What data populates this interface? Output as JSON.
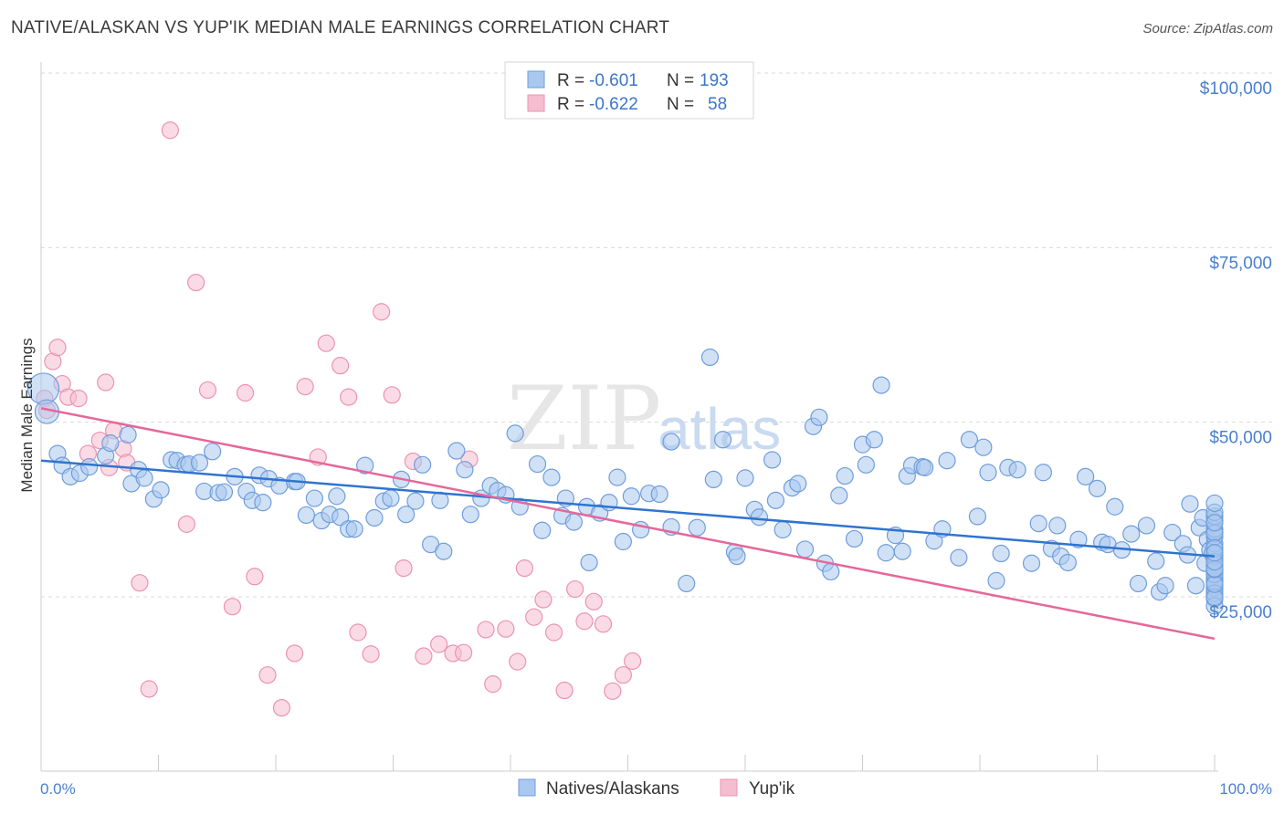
{
  "title": "NATIVE/ALASKAN VS YUP'IK MEDIAN MALE EARNINGS CORRELATION CHART",
  "source": "Source: ZipAtlas.com",
  "watermark": {
    "zip": "ZIP",
    "atlas": "atlas"
  },
  "colors": {
    "blue_fill": "#a9c8ef",
    "blue_stroke": "#6f9ddb",
    "blue_line": "#2f74d0",
    "pink_fill": "#f6bdd0",
    "pink_stroke": "#ec93b1",
    "pink_line": "#e5679a",
    "grid": "#d8d8d8",
    "tick_text": "#4a7fcf"
  },
  "legend": {
    "rows": [
      {
        "r_label": "R =",
        "r_value": "-0.601",
        "n_label": "N =",
        "n_value": "193",
        "series": "blue"
      },
      {
        "r_label": "R =",
        "r_value": "-0.622",
        "n_label": "N =",
        "n_value": "58",
        "series": "pink"
      }
    ]
  },
  "bottom_legend": [
    "Natives/Alaskans",
    "Yup'ik"
  ],
  "chart_data": {
    "type": "scatter",
    "title": "NATIVE/ALASKAN VS YUP'IK MEDIAN MALE EARNINGS CORRELATION CHART",
    "xlabel": "",
    "ylabel": "Median Male Earnings",
    "xlim": [
      0,
      100
    ],
    "ylim": [
      0,
      105000
    ],
    "x_tick_labels": {
      "left": "0.0%",
      "right": "100.0%"
    },
    "y_ticks": [
      {
        "value": 25000,
        "label": "$25,000"
      },
      {
        "value": 50000,
        "label": "$50,000"
      },
      {
        "value": 75000,
        "label": "$75,000"
      },
      {
        "value": 100000,
        "label": "$100,000"
      }
    ],
    "legend_position": "top-center",
    "series": [
      {
        "name": "Natives/Alaskans",
        "color": "#a9c8ef",
        "trend": {
          "x": [
            0,
            100
          ],
          "y": [
            44500,
            30800
          ]
        },
        "points": [
          [
            0.2,
            54800
          ],
          [
            0.5,
            51500
          ],
          [
            1.4,
            45500
          ],
          [
            1.8,
            43800
          ],
          [
            2.5,
            42200
          ],
          [
            3.3,
            42700
          ],
          [
            4.1,
            43600
          ],
          [
            5.5,
            45200
          ],
          [
            5.9,
            47000
          ],
          [
            7.4,
            48200
          ],
          [
            7.7,
            41200
          ],
          [
            8.3,
            43200
          ],
          [
            8.8,
            42000
          ],
          [
            9.6,
            39000
          ],
          [
            10.2,
            40300
          ],
          [
            11.1,
            44600
          ],
          [
            11.6,
            44500
          ],
          [
            12.3,
            43900
          ],
          [
            12.6,
            44000
          ],
          [
            13.5,
            44200
          ],
          [
            13.9,
            40100
          ],
          [
            14.6,
            45800
          ],
          [
            15.1,
            39900
          ],
          [
            15.6,
            40000
          ],
          [
            16.5,
            42200
          ],
          [
            17.5,
            40100
          ],
          [
            18.0,
            38800
          ],
          [
            18.6,
            42400
          ],
          [
            18.9,
            38500
          ],
          [
            19.4,
            41900
          ],
          [
            20.3,
            40900
          ],
          [
            21.6,
            41500
          ],
          [
            21.8,
            41500
          ],
          [
            22.6,
            36700
          ],
          [
            23.3,
            39100
          ],
          [
            23.9,
            35900
          ],
          [
            24.6,
            36800
          ],
          [
            25.2,
            39400
          ],
          [
            25.5,
            36400
          ],
          [
            26.2,
            34700
          ],
          [
            26.7,
            34700
          ],
          [
            27.6,
            43800
          ],
          [
            28.4,
            36300
          ],
          [
            29.2,
            38700
          ],
          [
            29.8,
            39100
          ],
          [
            30.7,
            41800
          ],
          [
            31.1,
            36800
          ],
          [
            31.9,
            38700
          ],
          [
            32.5,
            43900
          ],
          [
            33.2,
            32500
          ],
          [
            34.0,
            38800
          ],
          [
            34.3,
            31500
          ],
          [
            35.4,
            45900
          ],
          [
            36.1,
            43200
          ],
          [
            36.6,
            36800
          ],
          [
            37.5,
            39100
          ],
          [
            38.3,
            40900
          ],
          [
            38.9,
            40200
          ],
          [
            39.6,
            39600
          ],
          [
            40.4,
            48400
          ],
          [
            40.8,
            37900
          ],
          [
            42.3,
            44000
          ],
          [
            42.7,
            34500
          ],
          [
            43.5,
            42100
          ],
          [
            44.4,
            36600
          ],
          [
            44.7,
            39100
          ],
          [
            45.4,
            35700
          ],
          [
            46.5,
            37900
          ],
          [
            46.7,
            29900
          ],
          [
            47.6,
            37000
          ],
          [
            48.4,
            38500
          ],
          [
            49.1,
            42100
          ],
          [
            49.6,
            32900
          ],
          [
            50.3,
            39400
          ],
          [
            51.1,
            34600
          ],
          [
            51.8,
            39800
          ],
          [
            52.7,
            39700
          ],
          [
            53.7,
            35000
          ],
          [
            53.7,
            47200
          ],
          [
            55.0,
            26900
          ],
          [
            55.9,
            34900
          ],
          [
            57.0,
            59300
          ],
          [
            57.3,
            41800
          ],
          [
            58.1,
            47500
          ],
          [
            59.1,
            31400
          ],
          [
            59.3,
            30800
          ],
          [
            60.0,
            42000
          ],
          [
            60.8,
            37500
          ],
          [
            61.2,
            36400
          ],
          [
            62.3,
            44600
          ],
          [
            62.6,
            38800
          ],
          [
            63.2,
            34600
          ],
          [
            64.0,
            40600
          ],
          [
            64.5,
            41200
          ],
          [
            65.1,
            31800
          ],
          [
            65.8,
            49400
          ],
          [
            66.3,
            50700
          ],
          [
            66.8,
            29800
          ],
          [
            67.3,
            28600
          ],
          [
            68.0,
            39500
          ],
          [
            68.5,
            42300
          ],
          [
            69.3,
            33300
          ],
          [
            70.0,
            46800
          ],
          [
            70.3,
            43900
          ],
          [
            71.0,
            47500
          ],
          [
            71.6,
            55300
          ],
          [
            72.0,
            31300
          ],
          [
            72.8,
            33800
          ],
          [
            73.4,
            31500
          ],
          [
            73.8,
            42300
          ],
          [
            74.2,
            43800
          ],
          [
            75.1,
            43600
          ],
          [
            75.3,
            43500
          ],
          [
            76.1,
            33000
          ],
          [
            76.8,
            34700
          ],
          [
            77.2,
            44500
          ],
          [
            78.2,
            30600
          ],
          [
            79.1,
            47500
          ],
          [
            79.8,
            36500
          ],
          [
            80.3,
            46400
          ],
          [
            80.7,
            42800
          ],
          [
            81.4,
            27300
          ],
          [
            81.8,
            31200
          ],
          [
            82.4,
            43500
          ],
          [
            83.2,
            43200
          ],
          [
            84.4,
            29800
          ],
          [
            85.0,
            35500
          ],
          [
            85.4,
            42800
          ],
          [
            86.1,
            31900
          ],
          [
            86.6,
            35200
          ],
          [
            86.9,
            30800
          ],
          [
            87.5,
            29900
          ],
          [
            88.4,
            33200
          ],
          [
            89.0,
            42200
          ],
          [
            90.0,
            40500
          ],
          [
            90.4,
            32800
          ],
          [
            90.9,
            32500
          ],
          [
            91.5,
            37900
          ],
          [
            92.1,
            31700
          ],
          [
            92.9,
            34000
          ],
          [
            93.5,
            26900
          ],
          [
            94.2,
            35200
          ],
          [
            95.0,
            30100
          ],
          [
            95.3,
            25700
          ],
          [
            95.8,
            26600
          ],
          [
            96.4,
            34200
          ],
          [
            97.3,
            32600
          ],
          [
            97.7,
            31000
          ],
          [
            97.9,
            38300
          ],
          [
            98.4,
            26600
          ],
          [
            98.7,
            34900
          ],
          [
            99.0,
            36300
          ],
          [
            99.2,
            29800
          ],
          [
            99.4,
            33200
          ],
          [
            99.6,
            31700
          ],
          [
            99.8,
            31200
          ],
          [
            100.0,
            30500
          ],
          [
            100.0,
            29400
          ],
          [
            100.0,
            30300
          ],
          [
            100.0,
            28800
          ],
          [
            100.0,
            26600
          ],
          [
            100.0,
            28400
          ],
          [
            100.0,
            27700
          ],
          [
            100.0,
            29500
          ],
          [
            100.0,
            27200
          ],
          [
            100.0,
            25800
          ],
          [
            100.0,
            25100
          ],
          [
            100.0,
            24700
          ],
          [
            100.0,
            26300
          ],
          [
            100.0,
            27300
          ],
          [
            100.0,
            27100
          ],
          [
            100.0,
            28200
          ],
          [
            100.0,
            25500
          ],
          [
            100.0,
            23700
          ],
          [
            100.0,
            24900
          ],
          [
            100.0,
            26800
          ],
          [
            100.0,
            28900
          ],
          [
            100.0,
            30900
          ],
          [
            100.0,
            29000
          ],
          [
            100.0,
            31800
          ],
          [
            100.0,
            32600
          ],
          [
            100.0,
            33600
          ],
          [
            100.0,
            35900
          ],
          [
            100.0,
            34300
          ],
          [
            100.0,
            34700
          ],
          [
            100.0,
            36500
          ],
          [
            100.0,
            37100
          ],
          [
            100.0,
            38400
          ],
          [
            100.0,
            34100
          ],
          [
            100.0,
            35600
          ],
          [
            100.0,
            32000
          ],
          [
            100.0,
            30000
          ],
          [
            100.0,
            31300
          ]
        ]
      },
      {
        "name": "Yup'ik",
        "color": "#f6bdd0",
        "trend": {
          "x": [
            0,
            100
          ],
          "y": [
            52000,
            19000
          ]
        },
        "points": [
          [
            0.3,
            53400
          ],
          [
            0.5,
            51700
          ],
          [
            1.0,
            58700
          ],
          [
            1.4,
            60700
          ],
          [
            1.8,
            55500
          ],
          [
            2.3,
            53600
          ],
          [
            3.2,
            53400
          ],
          [
            4.0,
            45500
          ],
          [
            5.0,
            47400
          ],
          [
            5.5,
            55700
          ],
          [
            5.8,
            43500
          ],
          [
            6.2,
            48800
          ],
          [
            7.0,
            46200
          ],
          [
            7.3,
            44200
          ],
          [
            8.4,
            27000
          ],
          [
            9.2,
            11800
          ],
          [
            11.0,
            91800
          ],
          [
            12.4,
            35400
          ],
          [
            13.2,
            70000
          ],
          [
            14.2,
            54600
          ],
          [
            16.3,
            23600
          ],
          [
            17.4,
            54200
          ],
          [
            18.2,
            27900
          ],
          [
            19.3,
            13800
          ],
          [
            20.5,
            9100
          ],
          [
            21.6,
            16900
          ],
          [
            22.5,
            55100
          ],
          [
            23.6,
            45000
          ],
          [
            24.3,
            61300
          ],
          [
            25.5,
            58100
          ],
          [
            26.2,
            53600
          ],
          [
            27.0,
            19900
          ],
          [
            28.1,
            16800
          ],
          [
            29.0,
            65800
          ],
          [
            29.9,
            53900
          ],
          [
            30.9,
            29100
          ],
          [
            31.7,
            44400
          ],
          [
            32.6,
            16500
          ],
          [
            33.9,
            18200
          ],
          [
            35.1,
            16900
          ],
          [
            36.0,
            17000
          ],
          [
            36.5,
            44700
          ],
          [
            37.9,
            20300
          ],
          [
            38.5,
            12500
          ],
          [
            39.6,
            20400
          ],
          [
            40.6,
            15700
          ],
          [
            41.2,
            29100
          ],
          [
            42.0,
            22100
          ],
          [
            42.8,
            24600
          ],
          [
            43.7,
            19900
          ],
          [
            44.6,
            11600
          ],
          [
            45.5,
            26100
          ],
          [
            46.3,
            21500
          ],
          [
            47.1,
            24300
          ],
          [
            47.9,
            21100
          ],
          [
            48.7,
            11500
          ],
          [
            49.6,
            13800
          ],
          [
            50.4,
            15800
          ]
        ]
      }
    ]
  }
}
